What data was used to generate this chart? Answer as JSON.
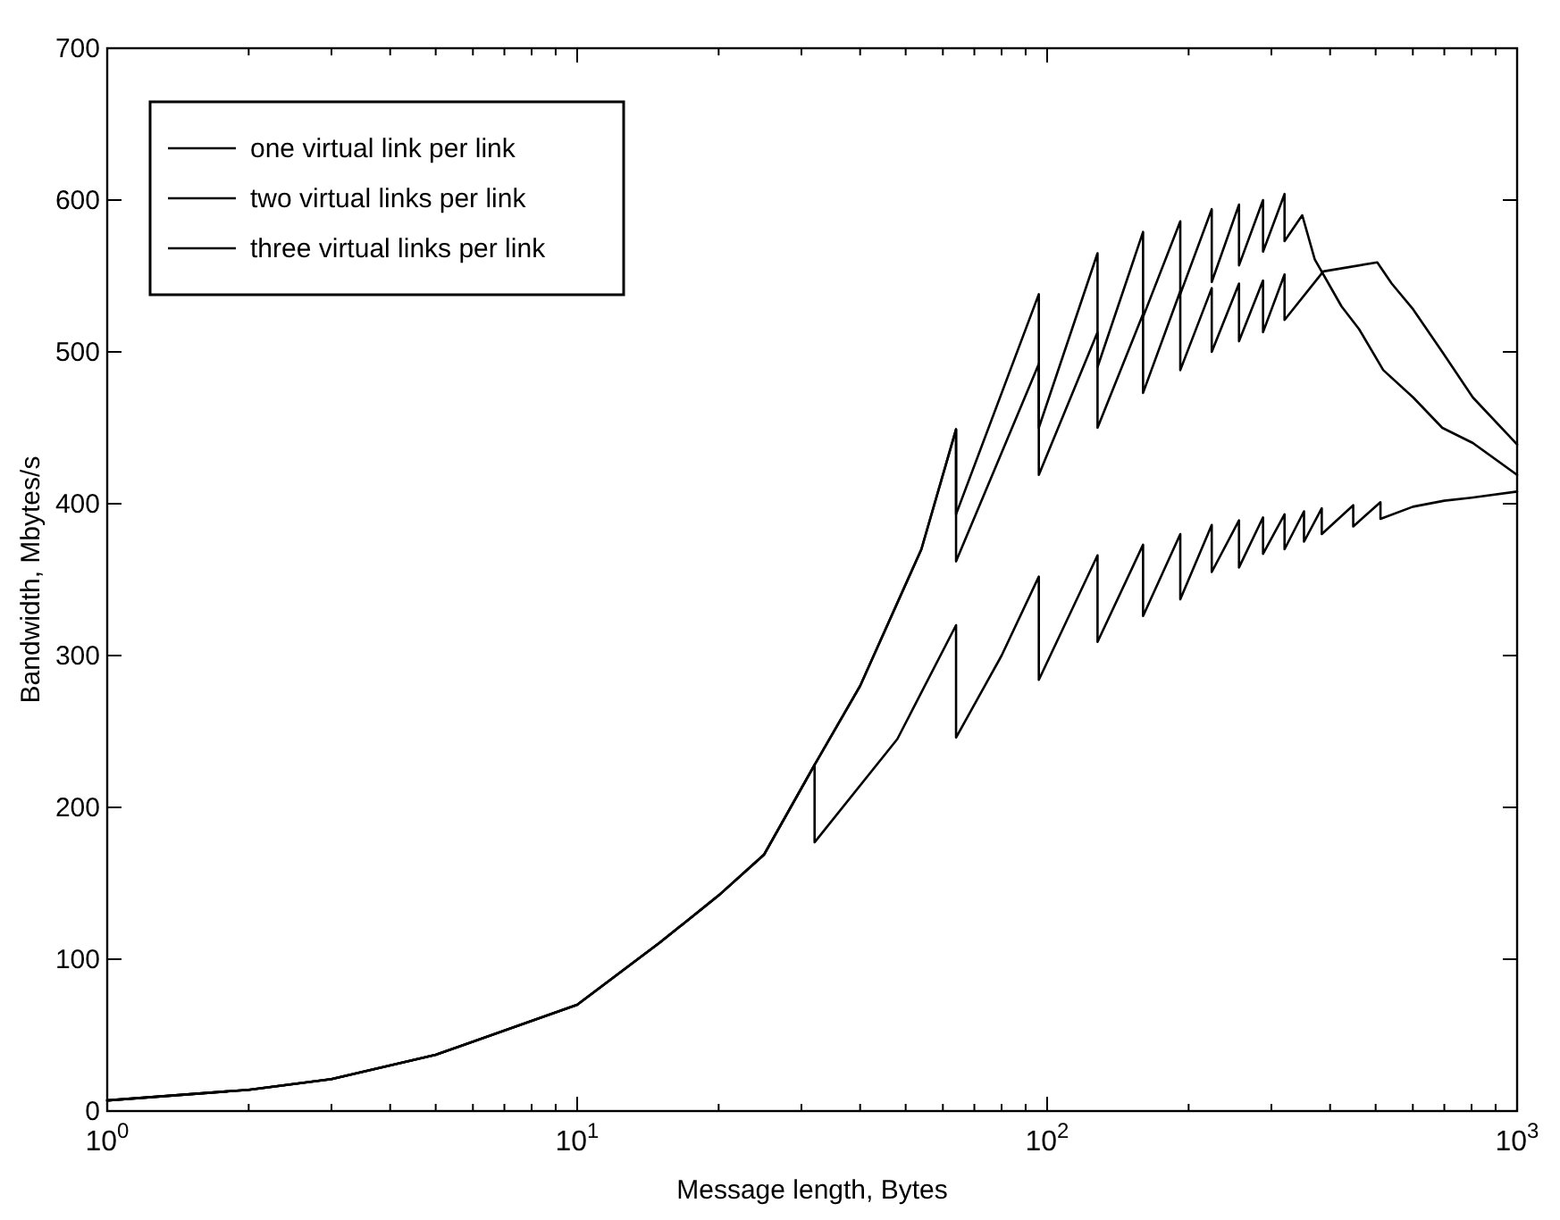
{
  "chart_data": {
    "type": "line",
    "xlabel": "Message length, Bytes",
    "ylabel": "Bandwidth, Mbytes/s",
    "log": "x",
    "xlim": [
      1,
      1000
    ],
    "ylim": [
      0,
      700
    ],
    "xticks": [
      {
        "value": 1,
        "label": "10$^{0}$"
      },
      {
        "value": 2,
        "label": null
      },
      {
        "value": 3,
        "label": null
      },
      {
        "value": 4,
        "label": null
      },
      {
        "value": 5,
        "label": null
      },
      {
        "value": 6,
        "label": null
      },
      {
        "value": 7,
        "label": null
      },
      {
        "value": 8,
        "label": null
      },
      {
        "value": 9,
        "label": null
      },
      {
        "value": 10,
        "label": "10$^{1}$"
      },
      {
        "value": 20,
        "label": null
      },
      {
        "value": 30,
        "label": null
      },
      {
        "value": 40,
        "label": null
      },
      {
        "value": 50,
        "label": null
      },
      {
        "value": 60,
        "label": null
      },
      {
        "value": 70,
        "label": null
      },
      {
        "value": 80,
        "label": null
      },
      {
        "value": 90,
        "label": null
      },
      {
        "value": 100,
        "label": "10$^{2}$"
      },
      {
        "value": 200,
        "label": null
      },
      {
        "value": 300,
        "label": null
      },
      {
        "value": 400,
        "label": null
      },
      {
        "value": 500,
        "label": null
      },
      {
        "value": 600,
        "label": null
      },
      {
        "value": 700,
        "label": null
      },
      {
        "value": 800,
        "label": null
      },
      {
        "value": 900,
        "label": null
      },
      {
        "value": 1000,
        "label": "10$^{3}$"
      }
    ],
    "yticks": [
      0,
      100,
      200,
      300,
      400,
      500,
      600,
      700
    ],
    "grid": false,
    "legend": "top left",
    "line_style": "solid",
    "series": [
      {
        "name": "one virtual link per link",
        "color": "#000000",
        "x": [
          1,
          2,
          3,
          5,
          10,
          15,
          20,
          25,
          32,
          32,
          48,
          64,
          64,
          80,
          96,
          96,
          128,
          128,
          160,
          160,
          192,
          192,
          224,
          224,
          256,
          256,
          288,
          288,
          320,
          320,
          352,
          352,
          384,
          384,
          448,
          448,
          512,
          512,
          600,
          700,
          800,
          1000
        ],
        "values": [
          7,
          14,
          21,
          37,
          70,
          111,
          142,
          169,
          228,
          177,
          245,
          320,
          246,
          300,
          352,
          284,
          366,
          309,
          373,
          326,
          380,
          337,
          386,
          355,
          389,
          358,
          391,
          367,
          393,
          370,
          395,
          375,
          397,
          380,
          399,
          385,
          401,
          390,
          398,
          402,
          404,
          408
        ]
      },
      {
        "name": "two virtual links per link",
        "color": "#000000",
        "x": [
          1,
          2,
          3,
          5,
          10,
          15,
          20,
          25,
          32,
          40,
          54,
          64,
          64,
          96,
          96,
          128,
          128,
          160,
          160,
          192,
          192,
          224,
          224,
          256,
          256,
          288,
          288,
          320,
          320,
          349,
          371,
          423,
          461,
          519,
          601,
          693,
          805,
          1000
        ],
        "values": [
          7,
          14,
          21,
          37,
          70,
          111,
          142,
          169,
          228,
          280,
          370,
          449,
          393,
          538,
          450,
          565,
          490,
          579,
          523,
          586,
          538,
          594,
          546,
          597,
          557,
          600,
          566,
          604,
          573,
          590,
          561,
          530,
          515,
          488,
          470,
          450,
          440,
          419
        ]
      },
      {
        "name": "three virtual links per link",
        "color": "#000000",
        "x": [
          1,
          2,
          3,
          5,
          10,
          15,
          20,
          25,
          32,
          40,
          54,
          64,
          64,
          96,
          96,
          128,
          128,
          160,
          160,
          192,
          192,
          224,
          224,
          256,
          256,
          288,
          288,
          320,
          320,
          387,
          504,
          541,
          601,
          693,
          805,
          1000
        ],
        "values": [
          7,
          14,
          21,
          37,
          70,
          111,
          142,
          169,
          228,
          280,
          370,
          449,
          362,
          492,
          419,
          513,
          450,
          525,
          473,
          540,
          488,
          542,
          500,
          545,
          507,
          547,
          513,
          551,
          521,
          553,
          559,
          545,
          528,
          500,
          470,
          439
        ]
      }
    ]
  }
}
